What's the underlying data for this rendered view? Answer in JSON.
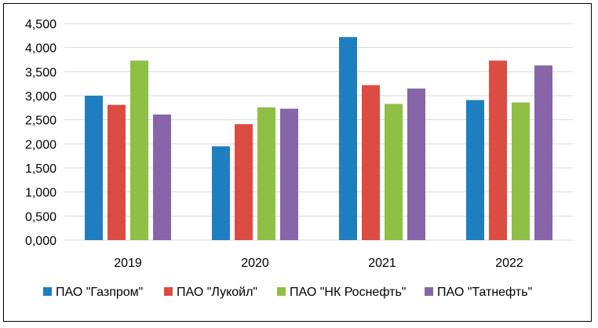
{
  "chart_data": {
    "type": "bar",
    "title": "",
    "xlabel": "",
    "ylabel": "",
    "categories": [
      "2019",
      "2020",
      "2021",
      "2022"
    ],
    "ylim": [
      0,
      4.5
    ],
    "yticks": [
      "0,000",
      "0,500",
      "1,000",
      "1,500",
      "2,000",
      "2,500",
      "3,000",
      "3,500",
      "4,000",
      "4,500"
    ],
    "grid": "horizontal",
    "legend_position": "bottom",
    "series": [
      {
        "name": "ПАО \"Газпром\"",
        "color": "#1f7ec0",
        "values": [
          3.0,
          1.95,
          4.22,
          2.91
        ]
      },
      {
        "name": "ПАО \"Лукойл\"",
        "color": "#dc4c43",
        "values": [
          2.81,
          2.41,
          3.22,
          3.73
        ]
      },
      {
        "name": "ПАО \"НК Роснефть\"",
        "color": "#8fbf45",
        "values": [
          3.73,
          2.76,
          2.83,
          2.86
        ]
      },
      {
        "name": "ПАО \"Татнефть\"",
        "color": "#8765a8",
        "values": [
          2.61,
          2.73,
          3.15,
          3.63
        ]
      }
    ]
  }
}
